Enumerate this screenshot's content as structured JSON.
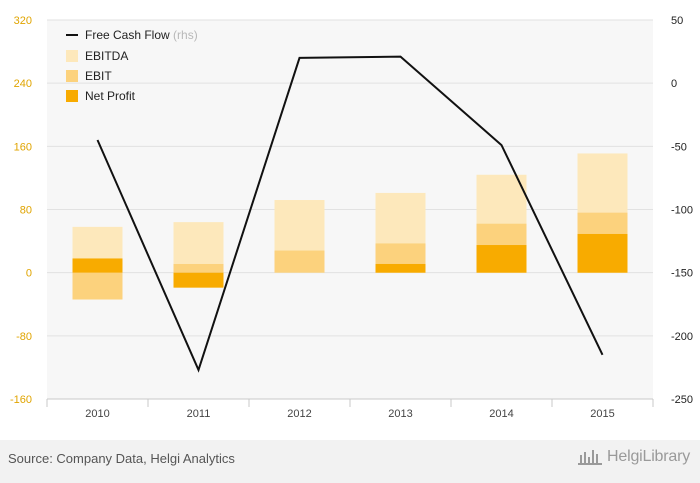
{
  "colors": {
    "ebitda": "#fde8bb",
    "ebit": "#fcd27d",
    "net_profit": "#f8ab00",
    "fcf_line": "#111111",
    "left_axis_text": "#e0a400",
    "right_axis_text": "#222222",
    "plot_bg": "#f7f7f7"
  },
  "footer": {
    "source": "Source: Company Data, Helgi Analytics",
    "brand": "HelgiLibrary"
  },
  "chart_data": {
    "type": "bar",
    "categories": [
      "2010",
      "2011",
      "2012",
      "2013",
      "2014",
      "2015"
    ],
    "series": [
      {
        "name": "EBITDA",
        "kind": "bar",
        "axis": "left",
        "values": [
          58,
          64,
          92,
          101,
          124,
          151
        ]
      },
      {
        "name": "EBIT",
        "kind": "bar",
        "axis": "left",
        "values": [
          -34,
          11,
          28,
          37,
          62,
          76
        ]
      },
      {
        "name": "Net Profit",
        "kind": "bar",
        "axis": "left",
        "values": [
          18,
          -19,
          0,
          11,
          35,
          49
        ]
      },
      {
        "name": "Free Cash Flow",
        "kind": "line",
        "axis": "right",
        "values": [
          -45,
          -227,
          20,
          21,
          -49,
          -215
        ]
      }
    ],
    "legend": [
      {
        "label": "Free Cash Flow",
        "suffix": "(rhs)",
        "key": "fcf_line"
      },
      {
        "label": "EBITDA",
        "key": "ebitda"
      },
      {
        "label": "EBIT",
        "key": "ebit"
      },
      {
        "label": "Net Profit",
        "key": "net_profit"
      }
    ],
    "legend_position": "top-left",
    "y_left": {
      "min": -160,
      "max": 320,
      "ticks": [
        320,
        240,
        160,
        80,
        0,
        -80,
        -160
      ]
    },
    "y_right": {
      "min": -250,
      "max": 50,
      "ticks": [
        50,
        0,
        -50,
        -100,
        -150,
        -200,
        -250
      ]
    },
    "grid": true
  }
}
